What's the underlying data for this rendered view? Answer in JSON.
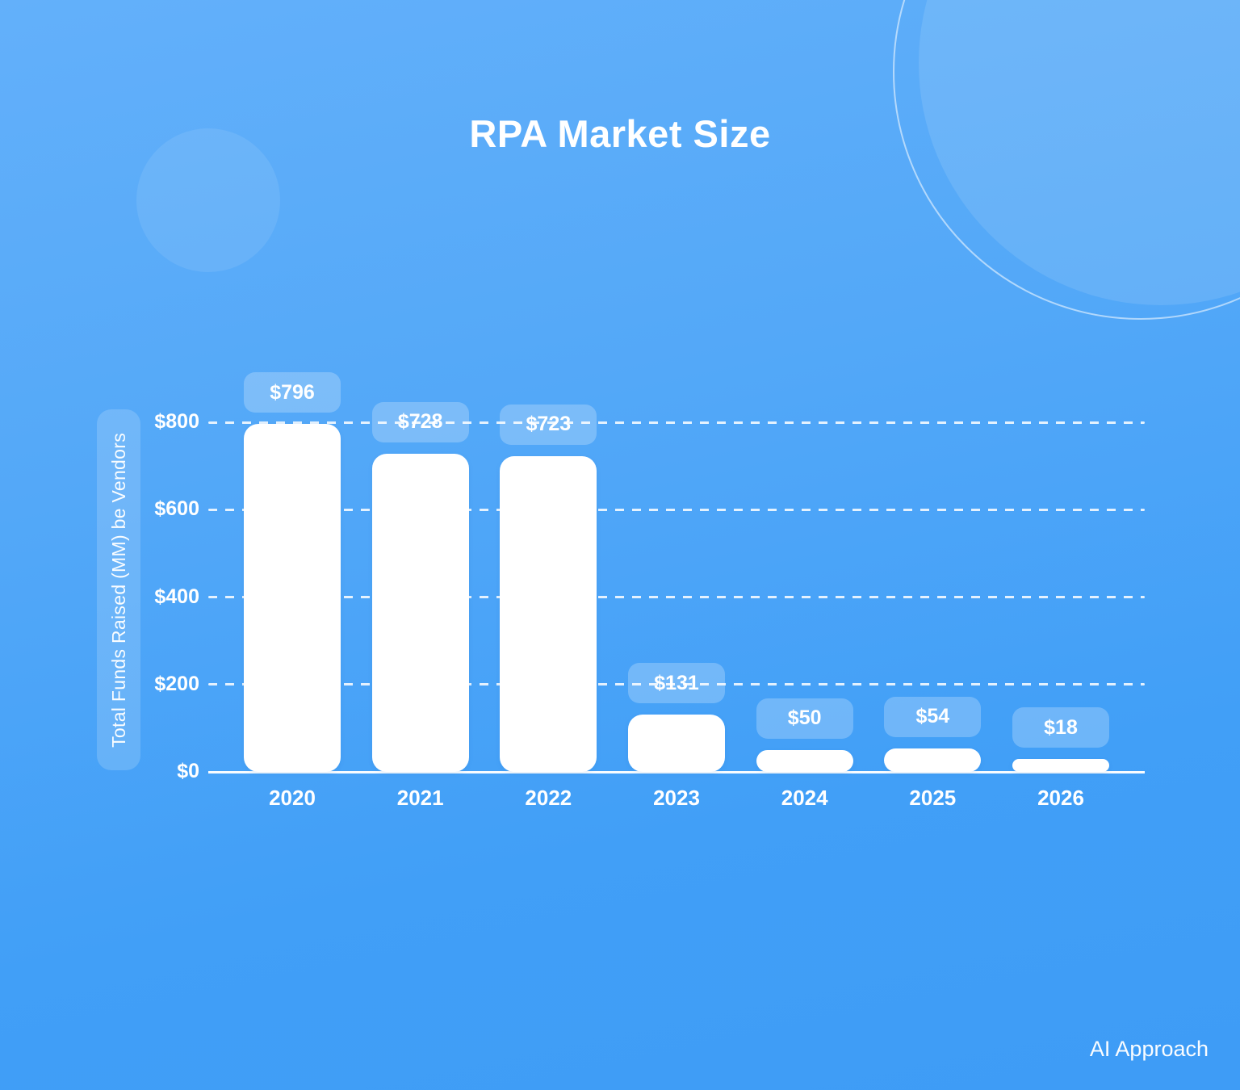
{
  "page": {
    "title": "RPA Market Size",
    "brand": "AI Approach"
  },
  "chart_data": {
    "type": "bar",
    "title": "RPA Market Size",
    "categories": [
      "2020",
      "2021",
      "2022",
      "2023",
      "2024",
      "2025",
      "2026"
    ],
    "values": [
      796,
      728,
      723,
      131,
      50,
      54,
      18
    ],
    "value_labels": [
      "$796",
      "$728",
      "$723",
      "$131",
      "$50",
      "$54",
      "$18"
    ],
    "xlabel": "",
    "ylabel": "Total Funds Raised (MM) be Vendors",
    "ylim": [
      0,
      800
    ],
    "yticks": [
      0,
      200,
      400,
      600,
      800
    ],
    "ytick_labels": [
      "$0",
      "$200",
      "$400",
      "$600",
      "$800"
    ],
    "grid": "horizontal-dashed",
    "legend": "none",
    "colors": {
      "background_top": "#63B0FA",
      "background_bottom": "#3E9CF6",
      "bar_fill": "#FFFFFF",
      "text": "#FFFFFF",
      "value_chip_overlay": "rgba(255,255,255,0.24)",
      "gridline": "rgba(255,255,255,0.85)"
    }
  }
}
